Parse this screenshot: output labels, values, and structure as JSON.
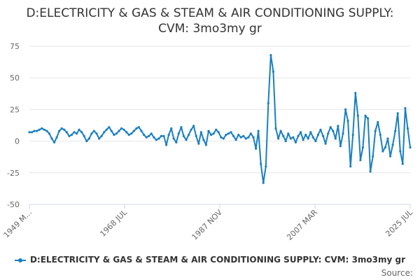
{
  "chart_data": {
    "type": "line",
    "title": "D:ELECTRICITY & GAS & STEAM & AIR CONDITIONING SUPPLY: CVM: 3mo3my gr",
    "xlabel": "",
    "ylabel": "",
    "x_tick_labels": [
      "1949 M...",
      "1968 JUL",
      "1987 NOV",
      "2007 MAR",
      "2025 JUL"
    ],
    "y_ticks": [
      75,
      50,
      25,
      0,
      -25,
      -50
    ],
    "ylim": [
      -50,
      75
    ],
    "xlim": [
      1949.0,
      2025.5
    ],
    "grid": true,
    "legend_position": "bottom",
    "series": [
      {
        "name": "D:ELECTRICITY & GAS & STEAM & AIR CONDITIONING SUPPLY: CVM: 3mo3my gr",
        "color": "#1a7fc1",
        "points": [
          [
            1949.0,
            7
          ],
          [
            1949.5,
            7
          ],
          [
            1950.0,
            8
          ],
          [
            1950.5,
            8
          ],
          [
            1951.0,
            9
          ],
          [
            1951.5,
            10
          ],
          [
            1952.0,
            9
          ],
          [
            1952.5,
            8
          ],
          [
            1953.0,
            6
          ],
          [
            1953.5,
            2
          ],
          [
            1954.0,
            -1
          ],
          [
            1954.5,
            3
          ],
          [
            1955.0,
            8
          ],
          [
            1955.5,
            10
          ],
          [
            1956.0,
            9
          ],
          [
            1956.5,
            7
          ],
          [
            1957.0,
            4
          ],
          [
            1957.5,
            5
          ],
          [
            1958.0,
            7
          ],
          [
            1958.5,
            6
          ],
          [
            1959.0,
            9
          ],
          [
            1959.5,
            7
          ],
          [
            1960.0,
            4
          ],
          [
            1960.5,
            0
          ],
          [
            1961.0,
            2
          ],
          [
            1961.5,
            6
          ],
          [
            1962.0,
            8
          ],
          [
            1962.5,
            6
          ],
          [
            1963.0,
            2
          ],
          [
            1963.5,
            4
          ],
          [
            1964.0,
            7
          ],
          [
            1964.5,
            9
          ],
          [
            1965.0,
            11
          ],
          [
            1965.5,
            8
          ],
          [
            1966.0,
            5
          ],
          [
            1966.5,
            6
          ],
          [
            1967.0,
            8
          ],
          [
            1967.5,
            10
          ],
          [
            1968.0,
            9
          ],
          [
            1968.5,
            7
          ],
          [
            1969.0,
            5
          ],
          [
            1969.5,
            6
          ],
          [
            1970.0,
            8
          ],
          [
            1970.5,
            10
          ],
          [
            1971.0,
            11
          ],
          [
            1971.5,
            8
          ],
          [
            1972.0,
            5
          ],
          [
            1972.5,
            3
          ],
          [
            1973.0,
            4
          ],
          [
            1973.5,
            6
          ],
          [
            1974.0,
            3
          ],
          [
            1974.5,
            1
          ],
          [
            1975.0,
            2
          ],
          [
            1975.5,
            4
          ],
          [
            1976.0,
            4
          ],
          [
            1976.5,
            -3
          ],
          [
            1977.0,
            5
          ],
          [
            1977.5,
            10
          ],
          [
            1978.0,
            2
          ],
          [
            1978.5,
            -1
          ],
          [
            1979.0,
            6
          ],
          [
            1979.5,
            11
          ],
          [
            1980.0,
            4
          ],
          [
            1980.5,
            1
          ],
          [
            1981.0,
            5
          ],
          [
            1981.5,
            9
          ],
          [
            1982.0,
            12
          ],
          [
            1982.5,
            4
          ],
          [
            1983.0,
            -2
          ],
          [
            1983.5,
            7
          ],
          [
            1984.0,
            1
          ],
          [
            1984.5,
            -3
          ],
          [
            1985.0,
            8
          ],
          [
            1985.5,
            5
          ],
          [
            1986.0,
            6
          ],
          [
            1986.5,
            9
          ],
          [
            1987.0,
            7
          ],
          [
            1987.5,
            3
          ],
          [
            1988.0,
            2
          ],
          [
            1988.5,
            5
          ],
          [
            1989.0,
            6
          ],
          [
            1989.5,
            7
          ],
          [
            1990.0,
            4
          ],
          [
            1990.5,
            1
          ],
          [
            1991.0,
            5
          ],
          [
            1991.5,
            3
          ],
          [
            1992.0,
            4
          ],
          [
            1992.5,
            2
          ],
          [
            1993.0,
            3
          ],
          [
            1993.5,
            6
          ],
          [
            1994.0,
            3
          ],
          [
            1994.5,
            -6
          ],
          [
            1995.0,
            8
          ],
          [
            1995.5,
            -18
          ],
          [
            1996.0,
            -33
          ],
          [
            1996.5,
            -20
          ],
          [
            1997.0,
            30
          ],
          [
            1997.5,
            68
          ],
          [
            1998.0,
            55
          ],
          [
            1998.5,
            10
          ],
          [
            1999.0,
            2
          ],
          [
            1999.5,
            8
          ],
          [
            2000.0,
            4
          ],
          [
            2000.5,
            0
          ],
          [
            2001.0,
            6
          ],
          [
            2001.5,
            2
          ],
          [
            2002.0,
            3
          ],
          [
            2002.5,
            -1
          ],
          [
            2003.0,
            4
          ],
          [
            2003.5,
            7
          ],
          [
            2004.0,
            1
          ],
          [
            2004.5,
            5
          ],
          [
            2005.0,
            2
          ],
          [
            2005.5,
            7
          ],
          [
            2006.0,
            3
          ],
          [
            2006.5,
            0
          ],
          [
            2007.0,
            5
          ],
          [
            2007.5,
            9
          ],
          [
            2008.0,
            4
          ],
          [
            2008.5,
            -2
          ],
          [
            2009.0,
            6
          ],
          [
            2009.5,
            11
          ],
          [
            2010.0,
            8
          ],
          [
            2010.5,
            2
          ],
          [
            2011.0,
            12
          ],
          [
            2011.5,
            -4
          ],
          [
            2012.0,
            6
          ],
          [
            2012.5,
            25
          ],
          [
            2013.0,
            16
          ],
          [
            2013.5,
            -20
          ],
          [
            2014.0,
            5
          ],
          [
            2014.5,
            38
          ],
          [
            2015.0,
            20
          ],
          [
            2015.5,
            -15
          ],
          [
            2016.0,
            -5
          ],
          [
            2016.5,
            20
          ],
          [
            2017.0,
            18
          ],
          [
            2017.5,
            -24
          ],
          [
            2018.0,
            -12
          ],
          [
            2018.5,
            8
          ],
          [
            2019.0,
            15
          ],
          [
            2019.5,
            5
          ],
          [
            2020.0,
            -8
          ],
          [
            2020.5,
            -5
          ],
          [
            2021.0,
            2
          ],
          [
            2021.5,
            -12
          ],
          [
            2022.0,
            -3
          ],
          [
            2022.5,
            8
          ],
          [
            2023.0,
            22
          ],
          [
            2023.5,
            -8
          ],
          [
            2024.0,
            -18
          ],
          [
            2024.5,
            26
          ],
          [
            2025.0,
            10
          ],
          [
            2025.5,
            -5
          ]
        ]
      }
    ]
  },
  "credits": "Source:"
}
